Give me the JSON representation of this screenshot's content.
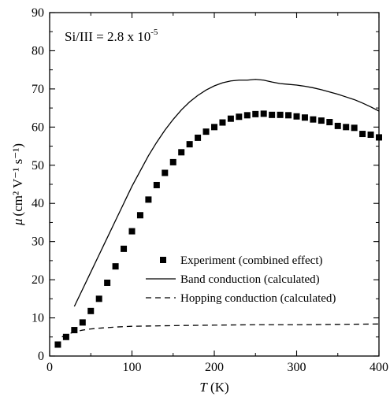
{
  "chart_data": {
    "type": "scatter",
    "annotation": {
      "base": "Si/III = 2.8 x 10",
      "exponent": "-5"
    },
    "xlabel": {
      "var": "T",
      "unit": " (K)"
    },
    "ylabel": {
      "var": "μ",
      "text": "(cm² V⁻¹ s⁻¹)"
    },
    "xlim": [
      0,
      400
    ],
    "ylim": [
      0,
      90
    ],
    "xticks": [
      0,
      100,
      200,
      300,
      400
    ],
    "yticks": [
      0,
      10,
      20,
      30,
      40,
      50,
      60,
      70,
      80,
      90
    ],
    "grid": false,
    "legend_position": "lower-right",
    "series": [
      {
        "name": "Experiment (combined effect)",
        "kind": "markers",
        "x": [
          10,
          20,
          30,
          40,
          50,
          60,
          70,
          80,
          90,
          100,
          110,
          120,
          130,
          140,
          150,
          160,
          170,
          180,
          190,
          200,
          210,
          220,
          230,
          240,
          250,
          260,
          270,
          280,
          290,
          300,
          310,
          320,
          330,
          340,
          350,
          360,
          370,
          380,
          390,
          400
        ],
        "y": [
          3.0,
          5.0,
          6.8,
          8.8,
          11.8,
          15.0,
          19.2,
          23.5,
          28.1,
          32.7,
          36.9,
          41.0,
          44.8,
          48.0,
          50.8,
          53.4,
          55.5,
          57.2,
          58.8,
          60.0,
          61.2,
          62.2,
          62.7,
          63.1,
          63.4,
          63.5,
          63.2,
          63.2,
          63.1,
          62.8,
          62.5,
          62.0,
          61.7,
          61.3,
          60.3,
          60.0,
          59.8,
          58.2,
          58.0,
          57.3
        ]
      },
      {
        "name": "Band conduction (calculated)",
        "kind": "solid",
        "x": [
          30,
          40,
          50,
          60,
          70,
          80,
          90,
          100,
          110,
          120,
          130,
          140,
          150,
          160,
          170,
          180,
          190,
          200,
          210,
          220,
          230,
          240,
          250,
          260,
          270,
          280,
          290,
          300,
          310,
          320,
          330,
          340,
          350,
          360,
          370,
          380,
          390,
          400
        ],
        "y": [
          13.0,
          17.5,
          22.0,
          26.5,
          31.0,
          35.5,
          40.0,
          44.5,
          48.5,
          52.5,
          56.0,
          59.2,
          62.0,
          64.5,
          66.6,
          68.3,
          69.7,
          70.8,
          71.6,
          72.1,
          72.3,
          72.3,
          72.5,
          72.3,
          71.8,
          71.4,
          71.2,
          71.0,
          70.7,
          70.3,
          69.8,
          69.2,
          68.6,
          67.9,
          67.2,
          66.3,
          65.3,
          64.2
        ]
      },
      {
        "name": "Hopping conduction (calculated)",
        "kind": "dashed",
        "x": [
          15,
          20,
          30,
          40,
          50,
          60,
          80,
          100,
          130,
          160,
          200,
          250,
          300,
          350,
          400
        ],
        "y": [
          5.0,
          5.6,
          6.3,
          6.8,
          7.1,
          7.3,
          7.6,
          7.8,
          7.9,
          8.0,
          8.1,
          8.2,
          8.2,
          8.3,
          8.4
        ]
      }
    ]
  }
}
